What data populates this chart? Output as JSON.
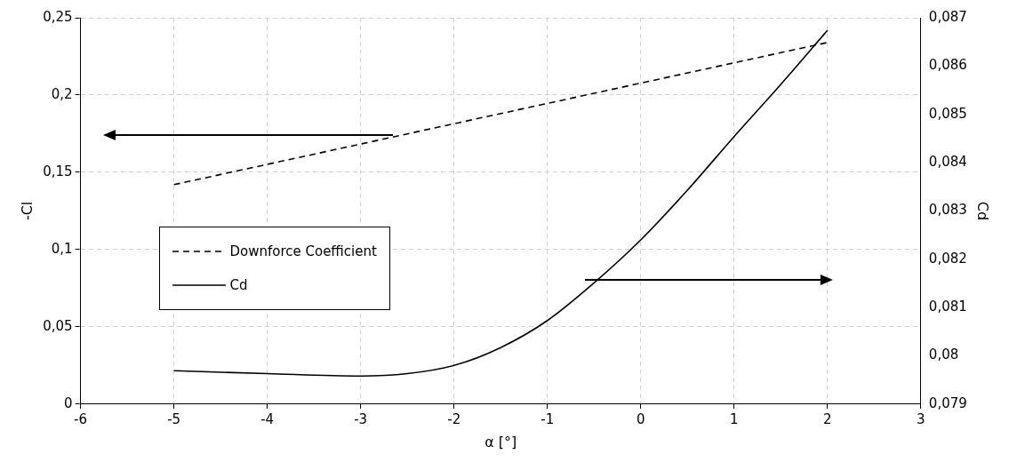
{
  "chart_data": {
    "type": "line",
    "xlabel": "α [°]",
    "ylabel": "-Cl",
    "y2label": "Cd",
    "xlim": [
      -6,
      3
    ],
    "xticks": [
      -6,
      -5,
      -4,
      -3,
      -2,
      -1,
      0,
      1,
      2,
      3
    ],
    "ylim": [
      0,
      0.25
    ],
    "yticks": [
      0,
      {
        "value": 0.05,
        "label": "0,05"
      },
      {
        "value": 0.1,
        "label": "0,1"
      },
      {
        "value": 0.15,
        "label": "0,15"
      },
      {
        "value": 0.2,
        "label": "0,2"
      },
      {
        "value": 0.25,
        "label": "0,25"
      }
    ],
    "y2lim": [
      0.079,
      0.087
    ],
    "y2ticks": [
      {
        "value": 0.079,
        "label": "0,079"
      },
      {
        "value": 0.08,
        "label": "0,08"
      },
      {
        "value": 0.081,
        "label": "0,081"
      },
      {
        "value": 0.082,
        "label": "0,082"
      },
      {
        "value": 0.083,
        "label": "0,083"
      },
      {
        "value": 0.084,
        "label": "0,084"
      },
      {
        "value": 0.085,
        "label": "0,085"
      },
      {
        "value": 0.086,
        "label": "0,086"
      },
      {
        "value": 0.087,
        "label": "0,087"
      }
    ],
    "grid": true,
    "legend": "left",
    "marker": "none",
    "series": [
      {
        "name": "Downforce Coefficient",
        "color": "#000000",
        "line_style": "dashed",
        "x": [
          -5,
          2
        ],
        "values": [
          0.142,
          0.234
        ]
      },
      {
        "name": "Cd",
        "color": "#000000",
        "line_style": "solid",
        "axis": "y2",
        "x": [
          -5,
          -4,
          -3,
          -2.5,
          -2,
          -1.5,
          -1,
          -0.5,
          0,
          0.5,
          1,
          1.5,
          2
        ],
        "values": [
          0.07969,
          0.07963,
          0.07958,
          0.07963,
          0.0798,
          0.08017,
          0.08073,
          0.08151,
          0.0824,
          0.08343,
          0.08454,
          0.08562,
          0.08674
        ]
      }
    ]
  }
}
